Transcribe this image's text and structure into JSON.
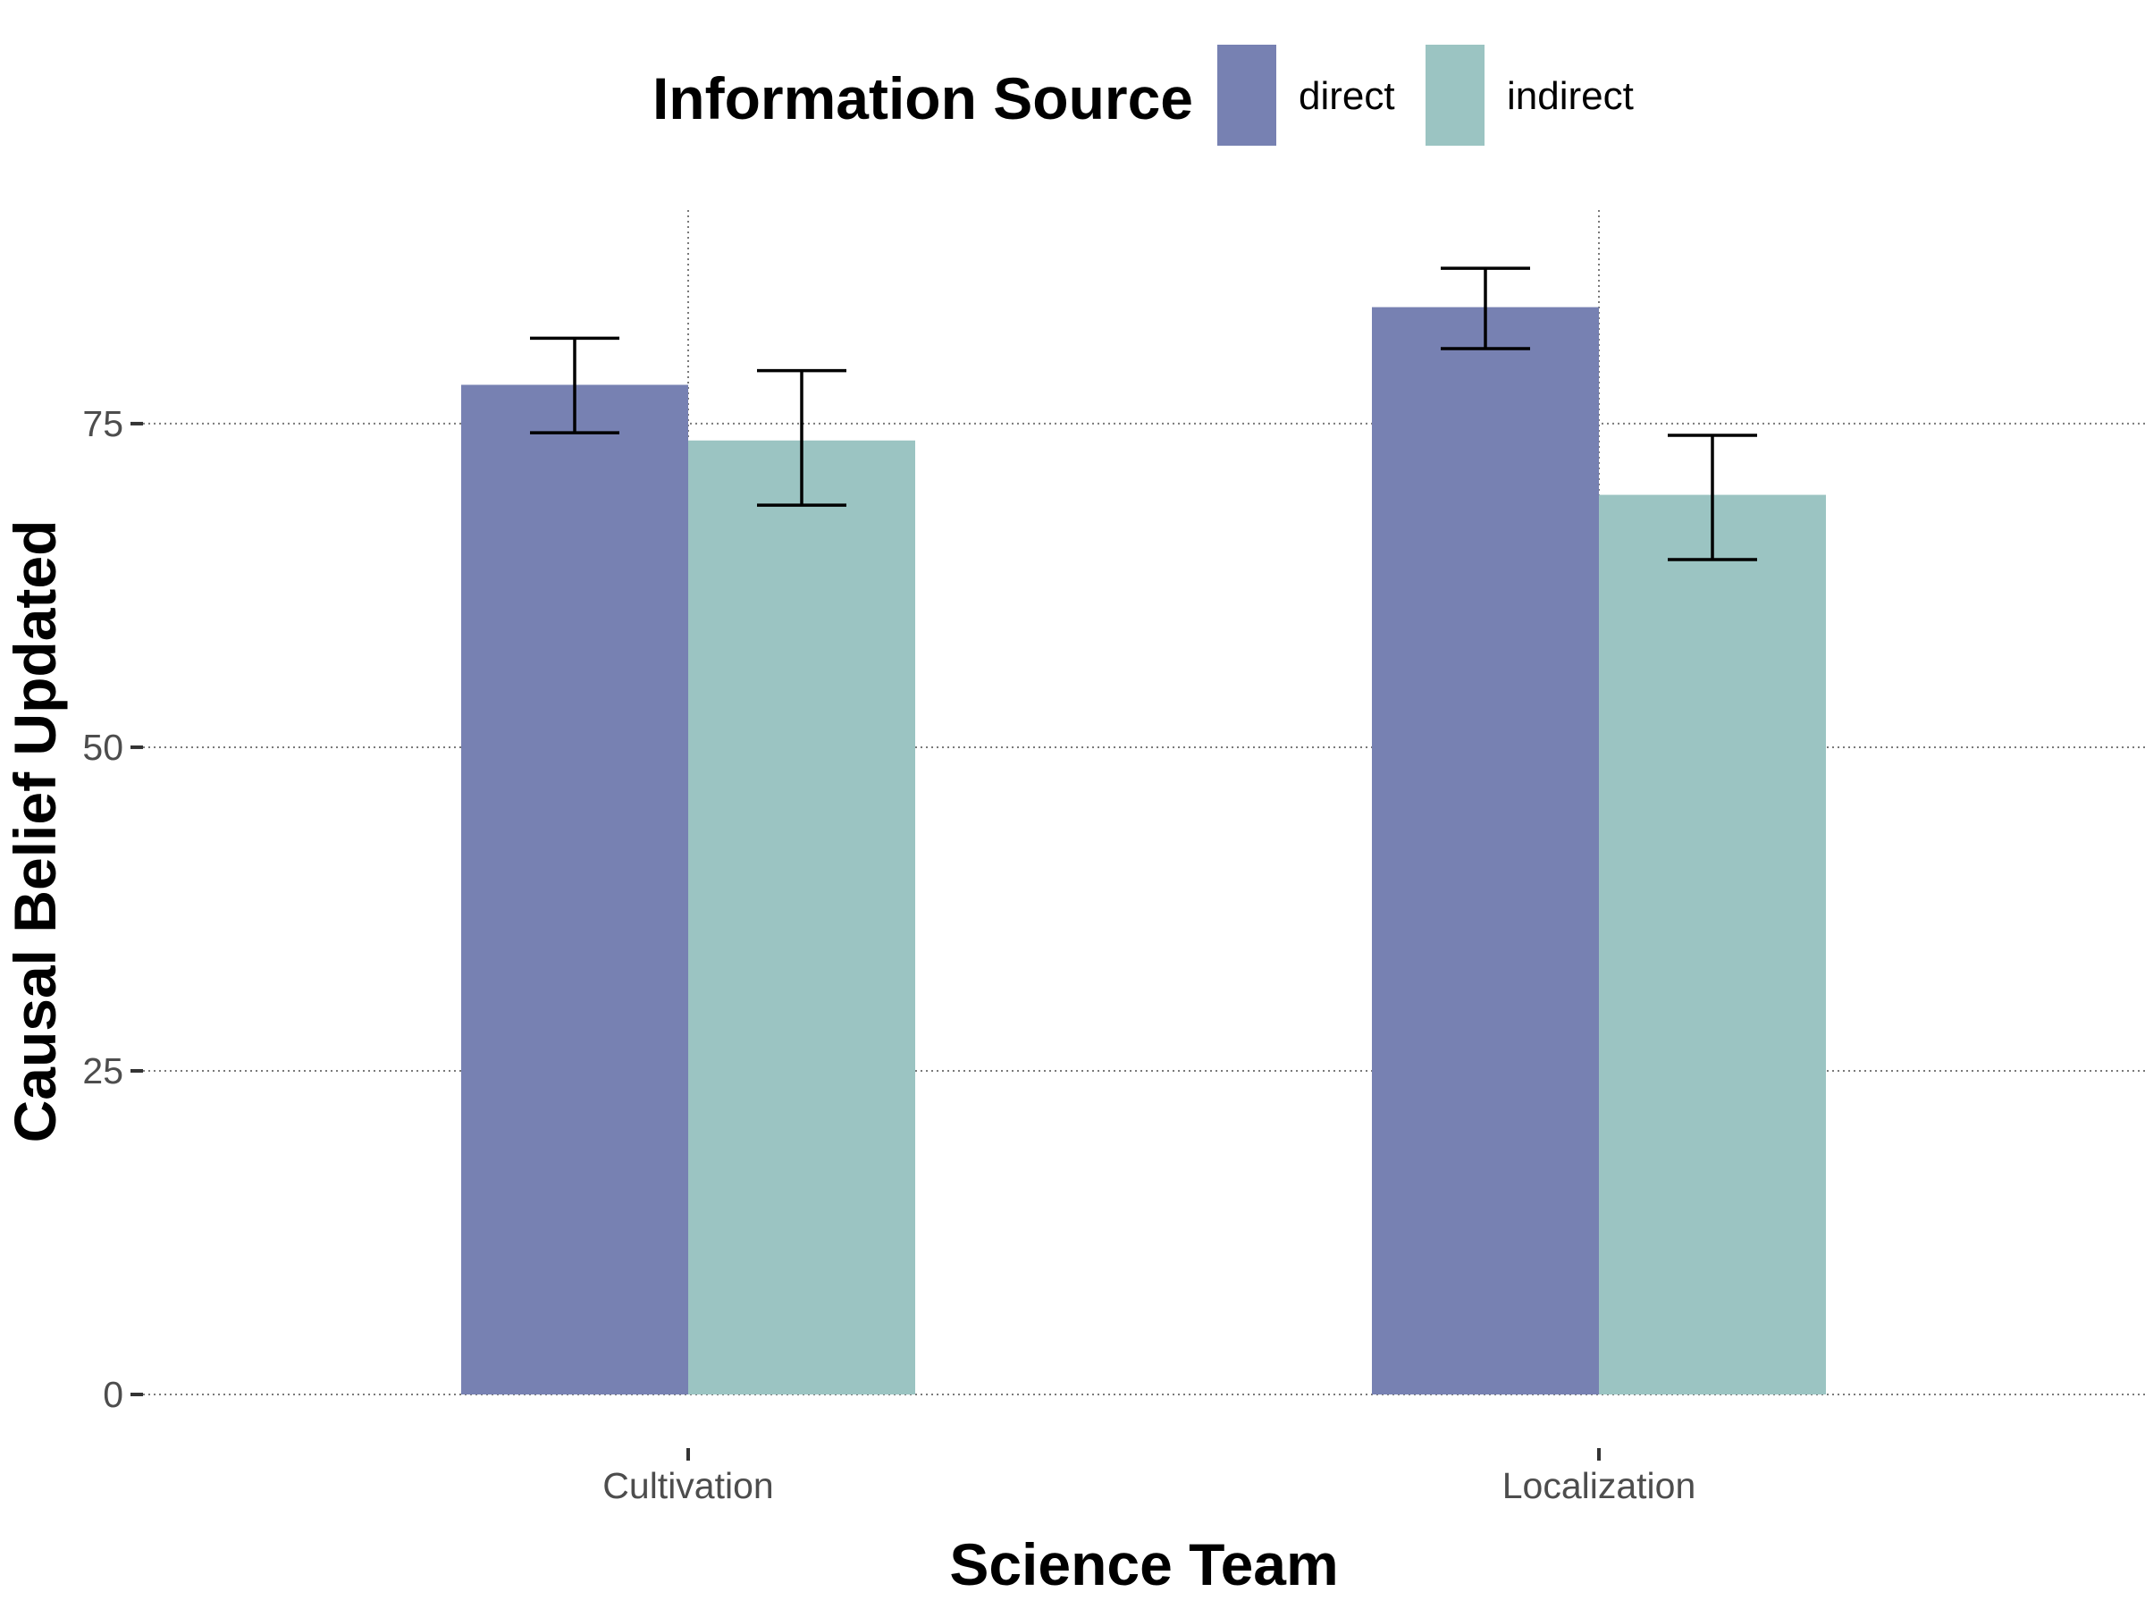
{
  "chart_data": {
    "type": "bar",
    "title": "",
    "xlabel": "Science Team",
    "ylabel": "Causal Belief Updated",
    "categories": [
      "Cultivation",
      "Localization"
    ],
    "series": [
      {
        "name": "direct",
        "color": "#7781b2",
        "values": [
          78,
          84
        ],
        "error_low": [
          74.3,
          80.8
        ],
        "error_high": [
          81.6,
          87
        ]
      },
      {
        "name": "indirect",
        "color": "#9bc4c2",
        "values": [
          73.7,
          69.5
        ],
        "error_low": [
          68.7,
          64.5
        ],
        "error_high": [
          79.1,
          74.1
        ]
      }
    ],
    "ylim": [
      0,
      91.5
    ],
    "yticks": [
      0,
      25,
      50,
      75
    ],
    "grid": true,
    "legend": {
      "title": "Information Source",
      "position": "top"
    }
  }
}
